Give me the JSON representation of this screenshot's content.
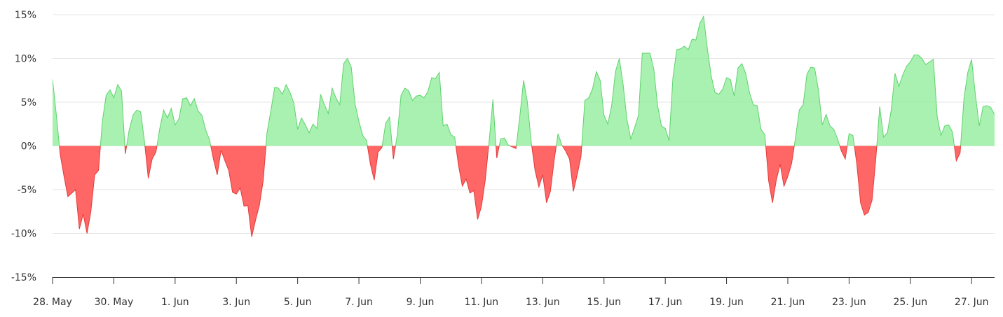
{
  "chart_data": {
    "type": "area",
    "title": "",
    "xlabel": "",
    "ylabel": "",
    "ylim": [
      -15,
      15
    ],
    "y_ticks": [
      -15,
      -10,
      -5,
      0,
      5,
      10,
      15
    ],
    "y_tick_labels": [
      "-15%",
      "-10%",
      "-5%",
      "0%",
      "5%",
      "10%",
      "15%"
    ],
    "x_range": [
      "2023-05-28",
      "2023-06-27T18:00"
    ],
    "x_ticks": [
      "2023-05-28",
      "2023-05-30",
      "2023-06-01",
      "2023-06-03",
      "2023-06-05",
      "2023-06-07",
      "2023-06-09",
      "2023-06-11",
      "2023-06-13",
      "2023-06-15",
      "2023-06-17",
      "2023-06-19",
      "2023-06-21",
      "2023-06-23",
      "2023-06-25",
      "2023-06-27"
    ],
    "x_tick_labels": [
      "28. May",
      "30. May",
      "1. Jun",
      "3. Jun",
      "5. Jun",
      "7. Jun",
      "9. Jun",
      "11. Jun",
      "13. Jun",
      "15. Jun",
      "17. Jun",
      "19. Jun",
      "21. Jun",
      "23. Jun",
      "25. Jun",
      "27. Jun"
    ],
    "grid": true,
    "legend": "none",
    "colors": {
      "positive": "#90ed9a",
      "positive_line": "#5fd26e",
      "negative": "#ff6666",
      "negative_line": "#e23b3b"
    },
    "series": [
      {
        "points": [
          [
            "2023-05-28T00:00",
            7.6
          ],
          [
            "2023-05-28T03:00",
            3.5
          ],
          [
            "2023-05-28T06:00",
            -1.0
          ],
          [
            "2023-05-28T09:00",
            -3.5
          ],
          [
            "2023-05-28T12:00",
            -5.8
          ],
          [
            "2023-05-28T15:00",
            -5.4
          ],
          [
            "2023-05-28T18:00",
            -5.0
          ],
          [
            "2023-05-28T21:00",
            -9.5
          ],
          [
            "2023-05-29T00:00",
            -7.8
          ],
          [
            "2023-05-29T03:00",
            -10.0
          ],
          [
            "2023-05-29T06:00",
            -7.5
          ],
          [
            "2023-05-29T09:00",
            -3.3
          ],
          [
            "2023-05-29T12:00",
            -2.8
          ],
          [
            "2023-05-29T15:00",
            2.8
          ],
          [
            "2023-05-29T18:00",
            5.8
          ],
          [
            "2023-05-29T21:00",
            6.4
          ],
          [
            "2023-05-30T00:00",
            5.5
          ],
          [
            "2023-05-30T03:00",
            7.0
          ],
          [
            "2023-05-30T06:00",
            6.3
          ],
          [
            "2023-05-30T09:00",
            -0.9
          ],
          [
            "2023-05-30T12:00",
            1.8
          ],
          [
            "2023-05-30T15:00",
            3.5
          ],
          [
            "2023-05-30T18:00",
            4.1
          ],
          [
            "2023-05-30T21:00",
            3.9
          ],
          [
            "2023-05-31T00:00",
            0.5
          ],
          [
            "2023-05-31T03:00",
            -3.7
          ],
          [
            "2023-05-31T06:00",
            -1.5
          ],
          [
            "2023-05-31T09:00",
            -0.7
          ],
          [
            "2023-05-31T12:00",
            2.0
          ],
          [
            "2023-05-31T15:00",
            4.1
          ],
          [
            "2023-05-31T18:00",
            3.2
          ],
          [
            "2023-05-31T21:00",
            4.3
          ],
          [
            "2023-06-01T00:00",
            2.4
          ],
          [
            "2023-06-01T03:00",
            3.1
          ],
          [
            "2023-06-01T06:00",
            5.4
          ],
          [
            "2023-06-01T09:00",
            5.5
          ],
          [
            "2023-06-01T12:00",
            4.6
          ],
          [
            "2023-06-01T15:00",
            5.4
          ],
          [
            "2023-06-01T18:00",
            4.0
          ],
          [
            "2023-06-01T21:00",
            3.5
          ],
          [
            "2023-06-02T00:00",
            1.8
          ],
          [
            "2023-06-02T03:00",
            0.7
          ],
          [
            "2023-06-02T06:00",
            -1.5
          ],
          [
            "2023-06-02T09:00",
            -3.3
          ],
          [
            "2023-06-02T12:00",
            -0.5
          ],
          [
            "2023-06-02T15:00",
            -1.7
          ],
          [
            "2023-06-02T18:00",
            -2.8
          ],
          [
            "2023-06-02T21:00",
            -5.3
          ],
          [
            "2023-06-03T00:00",
            -5.5
          ],
          [
            "2023-06-03T03:00",
            -4.8
          ],
          [
            "2023-06-03T06:00",
            -6.9
          ],
          [
            "2023-06-03T09:00",
            -6.8
          ],
          [
            "2023-06-03T12:00",
            -10.4
          ],
          [
            "2023-06-03T15:00",
            -8.5
          ],
          [
            "2023-06-03T18:00",
            -6.8
          ],
          [
            "2023-06-03T21:00",
            -4.0
          ],
          [
            "2023-06-04T00:00",
            1.5
          ],
          [
            "2023-06-04T03:00",
            4.0
          ],
          [
            "2023-06-04T06:00",
            6.7
          ],
          [
            "2023-06-04T09:00",
            6.6
          ],
          [
            "2023-06-04T12:00",
            5.9
          ],
          [
            "2023-06-04T15:00",
            7.0
          ],
          [
            "2023-06-04T18:00",
            6.1
          ],
          [
            "2023-06-04T21:00",
            4.9
          ],
          [
            "2023-06-05T00:00",
            1.9
          ],
          [
            "2023-06-05T03:00",
            3.2
          ],
          [
            "2023-06-05T06:00",
            2.4
          ],
          [
            "2023-06-05T09:00",
            1.5
          ],
          [
            "2023-06-05T12:00",
            2.5
          ],
          [
            "2023-06-05T15:00",
            2.0
          ],
          [
            "2023-06-05T18:00",
            5.9
          ],
          [
            "2023-06-05T21:00",
            4.7
          ],
          [
            "2023-06-06T00:00",
            3.7
          ],
          [
            "2023-06-06T03:00",
            6.6
          ],
          [
            "2023-06-06T06:00",
            5.5
          ],
          [
            "2023-06-06T09:00",
            4.7
          ],
          [
            "2023-06-06T12:00",
            9.4
          ],
          [
            "2023-06-06T15:00",
            10.0
          ],
          [
            "2023-06-06T18:00",
            9.0
          ],
          [
            "2023-06-06T21:00",
            4.8
          ],
          [
            "2023-06-07T00:00",
            2.8
          ],
          [
            "2023-06-07T03:00",
            1.2
          ],
          [
            "2023-06-07T06:00",
            0.6
          ],
          [
            "2023-06-07T09:00",
            -2.1
          ],
          [
            "2023-06-07T12:00",
            -3.9
          ],
          [
            "2023-06-07T15:00",
            -0.7
          ],
          [
            "2023-06-07T18:00",
            -0.2
          ],
          [
            "2023-06-07T21:00",
            2.6
          ],
          [
            "2023-06-08T00:00",
            3.3
          ],
          [
            "2023-06-08T03:00",
            -1.5
          ],
          [
            "2023-06-08T06:00",
            1.2
          ],
          [
            "2023-06-08T09:00",
            5.8
          ],
          [
            "2023-06-08T12:00",
            6.6
          ],
          [
            "2023-06-08T15:00",
            6.3
          ],
          [
            "2023-06-08T18:00",
            5.2
          ],
          [
            "2023-06-08T21:00",
            5.7
          ],
          [
            "2023-06-09T00:00",
            5.8
          ],
          [
            "2023-06-09T03:00",
            5.5
          ],
          [
            "2023-06-09T06:00",
            6.2
          ],
          [
            "2023-06-09T09:00",
            7.8
          ],
          [
            "2023-06-09T12:00",
            7.7
          ],
          [
            "2023-06-09T15:00",
            8.4
          ],
          [
            "2023-06-09T18:00",
            2.3
          ],
          [
            "2023-06-09T21:00",
            2.5
          ],
          [
            "2023-06-10T00:00",
            1.3
          ],
          [
            "2023-06-10T03:00",
            1.0
          ],
          [
            "2023-06-10T06:00",
            -2.2
          ],
          [
            "2023-06-10T09:00",
            -4.6
          ],
          [
            "2023-06-10T12:00",
            -3.8
          ],
          [
            "2023-06-10T15:00",
            -5.4
          ],
          [
            "2023-06-10T18:00",
            -5.1
          ],
          [
            "2023-06-10T21:00",
            -8.4
          ],
          [
            "2023-06-11T00:00",
            -6.9
          ],
          [
            "2023-06-11T03:00",
            -3.9
          ],
          [
            "2023-06-11T06:00",
            0.5
          ],
          [
            "2023-06-11T09:00",
            5.3
          ],
          [
            "2023-06-11T12:00",
            -1.4
          ],
          [
            "2023-06-11T15:00",
            0.8
          ],
          [
            "2023-06-11T18:00",
            0.9
          ],
          [
            "2023-06-11T21:00",
            0.1
          ],
          [
            "2023-06-12T00:00",
            -0.1
          ],
          [
            "2023-06-12T03:00",
            -0.3
          ],
          [
            "2023-06-12T06:00",
            3.3
          ],
          [
            "2023-06-12T09:00",
            7.5
          ],
          [
            "2023-06-12T12:00",
            5.0
          ],
          [
            "2023-06-12T15:00",
            0.4
          ],
          [
            "2023-06-12T18:00",
            -2.8
          ],
          [
            "2023-06-12T21:00",
            -4.7
          ],
          [
            "2023-06-13T00:00",
            -3.3
          ],
          [
            "2023-06-13T03:00",
            -6.5
          ],
          [
            "2023-06-13T06:00",
            -5.2
          ],
          [
            "2023-06-13T09:00",
            -1.6
          ],
          [
            "2023-06-13T12:00",
            1.4
          ],
          [
            "2023-06-13T15:00",
            0.1
          ],
          [
            "2023-06-13T18:00",
            -0.6
          ],
          [
            "2023-06-13T21:00",
            -1.5
          ],
          [
            "2023-06-14T00:00",
            -5.2
          ],
          [
            "2023-06-14T03:00",
            -3.3
          ],
          [
            "2023-06-14T06:00",
            -1.2
          ],
          [
            "2023-06-14T09:00",
            5.2
          ],
          [
            "2023-06-14T12:00",
            5.5
          ],
          [
            "2023-06-14T15:00",
            6.5
          ],
          [
            "2023-06-14T18:00",
            8.5
          ],
          [
            "2023-06-14T21:00",
            7.5
          ],
          [
            "2023-06-15T00:00",
            3.5
          ],
          [
            "2023-06-15T03:00",
            2.5
          ],
          [
            "2023-06-15T06:00",
            4.6
          ],
          [
            "2023-06-15T09:00",
            8.5
          ],
          [
            "2023-06-15T12:00",
            10.0
          ],
          [
            "2023-06-15T15:00",
            7.0
          ],
          [
            "2023-06-15T18:00",
            3.0
          ],
          [
            "2023-06-15T21:00",
            0.8
          ],
          [
            "2023-06-16T00:00",
            2.1
          ],
          [
            "2023-06-16T03:00",
            3.5
          ],
          [
            "2023-06-16T06:00",
            10.6
          ],
          [
            "2023-06-16T09:00",
            10.6
          ],
          [
            "2023-06-16T12:00",
            10.6
          ],
          [
            "2023-06-16T15:00",
            8.8
          ],
          [
            "2023-06-16T18:00",
            4.6
          ],
          [
            "2023-06-16T21:00",
            2.3
          ],
          [
            "2023-06-17T00:00",
            2.0
          ],
          [
            "2023-06-17T03:00",
            0.6
          ],
          [
            "2023-06-17T06:00",
            7.8
          ],
          [
            "2023-06-17T09:00",
            11.0
          ],
          [
            "2023-06-17T12:00",
            11.1
          ],
          [
            "2023-06-17T15:00",
            11.4
          ],
          [
            "2023-06-17T18:00",
            11.0
          ],
          [
            "2023-06-17T21:00",
            12.2
          ],
          [
            "2023-06-18T00:00",
            12.1
          ],
          [
            "2023-06-18T03:00",
            14.0
          ],
          [
            "2023-06-18T06:00",
            14.8
          ],
          [
            "2023-06-18T09:00",
            11.1
          ],
          [
            "2023-06-18T12:00",
            8.0
          ],
          [
            "2023-06-18T15:00",
            6.1
          ],
          [
            "2023-06-18T18:00",
            5.9
          ],
          [
            "2023-06-18T21:00",
            6.5
          ],
          [
            "2023-06-19T00:00",
            7.8
          ],
          [
            "2023-06-19T03:00",
            7.6
          ],
          [
            "2023-06-19T06:00",
            5.7
          ],
          [
            "2023-06-19T09:00",
            8.9
          ],
          [
            "2023-06-19T12:00",
            9.4
          ],
          [
            "2023-06-19T15:00",
            8.3
          ],
          [
            "2023-06-19T18:00",
            6.1
          ],
          [
            "2023-06-19T21:00",
            4.7
          ],
          [
            "2023-06-20T00:00",
            4.6
          ],
          [
            "2023-06-20T03:00",
            1.9
          ],
          [
            "2023-06-20T06:00",
            1.3
          ],
          [
            "2023-06-20T09:00",
            -4.0
          ],
          [
            "2023-06-20T12:00",
            -6.5
          ],
          [
            "2023-06-20T15:00",
            -3.9
          ],
          [
            "2023-06-20T18:00",
            -2.1
          ],
          [
            "2023-06-20T21:00",
            -4.6
          ],
          [
            "2023-06-21T00:00",
            -3.5
          ],
          [
            "2023-06-21T03:00",
            -2.0
          ],
          [
            "2023-06-21T06:00",
            0.9
          ],
          [
            "2023-06-21T09:00",
            4.1
          ],
          [
            "2023-06-21T12:00",
            4.7
          ],
          [
            "2023-06-21T15:00",
            8.2
          ],
          [
            "2023-06-21T18:00",
            9.0
          ],
          [
            "2023-06-21T21:00",
            8.9
          ],
          [
            "2023-06-22T00:00",
            6.4
          ],
          [
            "2023-06-22T03:00",
            2.4
          ],
          [
            "2023-06-22T06:00",
            3.6
          ],
          [
            "2023-06-22T09:00",
            2.3
          ],
          [
            "2023-06-22T12:00",
            1.9
          ],
          [
            "2023-06-22T15:00",
            0.8
          ],
          [
            "2023-06-22T18:00",
            -0.6
          ],
          [
            "2023-06-22T21:00",
            -1.5
          ],
          [
            "2023-06-23T00:00",
            1.4
          ],
          [
            "2023-06-23T03:00",
            1.2
          ],
          [
            "2023-06-23T06:00",
            -2.0
          ],
          [
            "2023-06-23T09:00",
            -6.5
          ],
          [
            "2023-06-23T12:00",
            -7.9
          ],
          [
            "2023-06-23T15:00",
            -7.6
          ],
          [
            "2023-06-23T18:00",
            -6.2
          ],
          [
            "2023-06-23T21:00",
            -1.4
          ],
          [
            "2023-06-24T00:00",
            4.5
          ],
          [
            "2023-06-24T03:00",
            1.0
          ],
          [
            "2023-06-24T06:00",
            1.5
          ],
          [
            "2023-06-24T09:00",
            4.1
          ],
          [
            "2023-06-24T12:00",
            8.3
          ],
          [
            "2023-06-24T15:00",
            6.8
          ],
          [
            "2023-06-24T18:00",
            8.1
          ],
          [
            "2023-06-24T21:00",
            9.1
          ],
          [
            "2023-06-25T00:00",
            9.6
          ],
          [
            "2023-06-25T03:00",
            10.4
          ],
          [
            "2023-06-25T06:00",
            10.4
          ],
          [
            "2023-06-25T09:00",
            10.0
          ],
          [
            "2023-06-25T12:00",
            9.3
          ],
          [
            "2023-06-25T15:00",
            9.6
          ],
          [
            "2023-06-25T18:00",
            9.9
          ],
          [
            "2023-06-25T21:00",
            3.4
          ],
          [
            "2023-06-26T00:00",
            1.2
          ],
          [
            "2023-06-26T03:00",
            2.3
          ],
          [
            "2023-06-26T06:00",
            2.4
          ],
          [
            "2023-06-26T09:00",
            1.6
          ],
          [
            "2023-06-26T12:00",
            -1.7
          ],
          [
            "2023-06-26T15:00",
            -0.8
          ],
          [
            "2023-06-26T18:00",
            5.4
          ],
          [
            "2023-06-26T21:00",
            8.4
          ],
          [
            "2023-06-27T00:00",
            9.9
          ],
          [
            "2023-06-27T03:00",
            5.8
          ],
          [
            "2023-06-27T06:00",
            2.3
          ],
          [
            "2023-06-27T09:00",
            4.5
          ],
          [
            "2023-06-27T12:00",
            4.6
          ],
          [
            "2023-06-27T15:00",
            4.4
          ],
          [
            "2023-06-27T18:00",
            3.6
          ]
        ]
      }
    ]
  }
}
